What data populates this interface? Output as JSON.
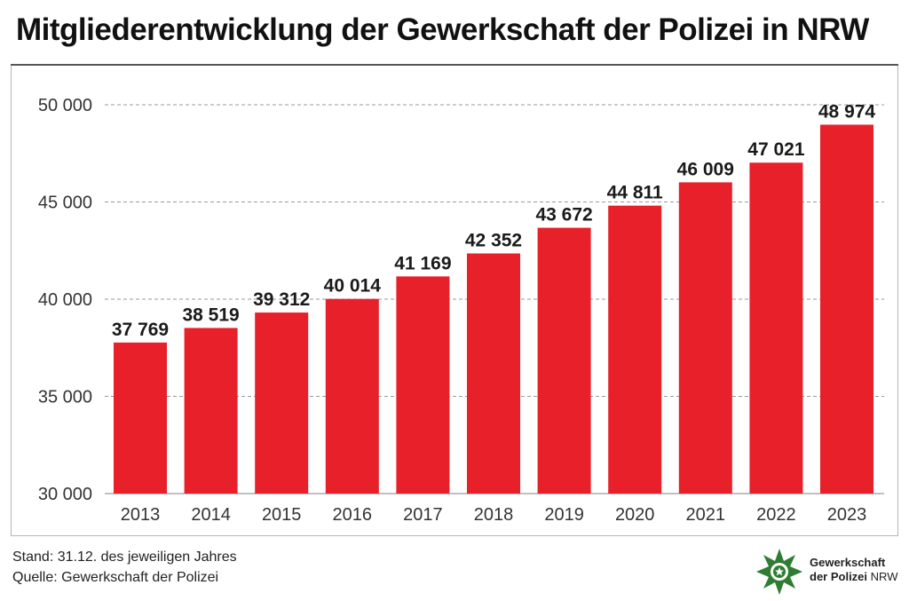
{
  "title": "Mitgliederentwicklung der Gewerkschaft der Polizei in NRW",
  "footer": {
    "line1": "Stand: 31.12. des jeweiligen Jahres",
    "line2": "Quelle: Gewerkschaft der Polizei"
  },
  "logo": {
    "line1": "Gewerkschaft",
    "line2": "der Polizei",
    "line3": "NRW",
    "icon": "star-emblem-icon",
    "color": "#2e7d32"
  },
  "colors": {
    "bar": "#e8202a",
    "grid": "#9a9a9a",
    "text": "#1a1a1a"
  },
  "chart_data": {
    "type": "bar",
    "title": "Mitgliederentwicklung der Gewerkschaft der Polizei in NRW",
    "xlabel": "",
    "ylabel": "",
    "categories": [
      "2013",
      "2014",
      "2015",
      "2016",
      "2017",
      "2018",
      "2019",
      "2020",
      "2021",
      "2022",
      "2023"
    ],
    "values": [
      37769,
      38519,
      39312,
      40014,
      41169,
      42352,
      43672,
      44811,
      46009,
      47021,
      48974
    ],
    "value_labels": [
      "37 769",
      "38 519",
      "39 312",
      "40 014",
      "41 169",
      "42 352",
      "43 672",
      "44 811",
      "46 009",
      "47 021",
      "48 974"
    ],
    "ylim": [
      30000,
      50000
    ],
    "yticks": [
      30000,
      35000,
      40000,
      45000,
      50000
    ],
    "ytick_labels": [
      "30 000",
      "35 000",
      "40 000",
      "45 000",
      "50 000"
    ],
    "grid": true,
    "legend": "none"
  }
}
